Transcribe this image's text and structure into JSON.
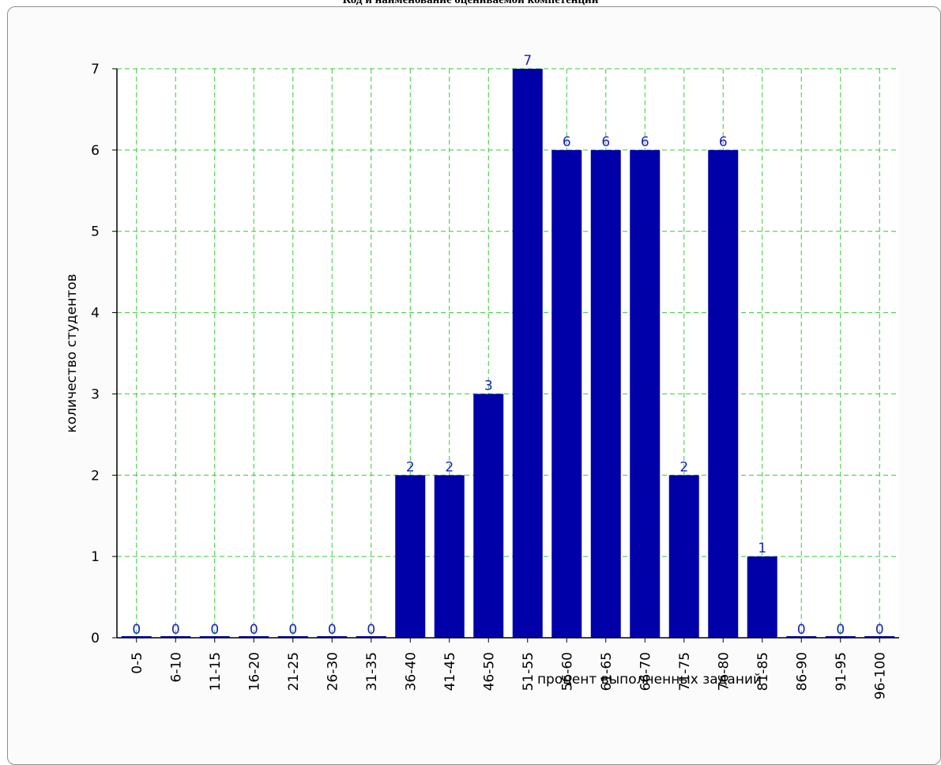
{
  "page": {
    "title": "Код и наименование оцениваемой компетенции"
  },
  "chart_data": {
    "type": "bar",
    "title": "",
    "xlabel": "процент выполненных заданий",
    "ylabel": "количество студентов",
    "categories": [
      "0-5",
      "6-10",
      "11-15",
      "16-20",
      "21-25",
      "26-30",
      "31-35",
      "36-40",
      "41-45",
      "46-50",
      "51-55",
      "56-60",
      "61-65",
      "66-70",
      "71-75",
      "76-80",
      "81-85",
      "86-90",
      "91-95",
      "96-100"
    ],
    "values": [
      0,
      0,
      0,
      0,
      0,
      0,
      0,
      2,
      2,
      3,
      7,
      6,
      6,
      6,
      2,
      6,
      1,
      0,
      0,
      0
    ],
    "ylim": [
      0,
      7
    ],
    "yticks": [
      0,
      1,
      2,
      3,
      4,
      5,
      6,
      7
    ],
    "grid": true,
    "colors": {
      "bar": "#0000a8",
      "grid": "#33cc33",
      "data_label": "#1d1dbf",
      "plot_bg": "#ffffff"
    }
  }
}
